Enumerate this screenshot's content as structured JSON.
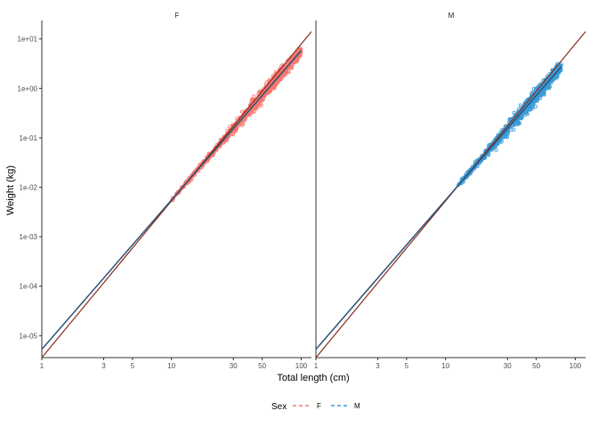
{
  "chart_data": {
    "type": "scatter",
    "x_scale": "log10",
    "y_scale": "log10",
    "xlabel": "Total length (cm)",
    "ylabel": "Weight (kg)",
    "x_ticks": [
      1,
      3,
      5,
      10,
      30,
      50,
      100
    ],
    "x_tick_labels": [
      "1",
      "3",
      "5",
      "10",
      "30",
      "50",
      "100"
    ],
    "y_ticks": [
      1e-05,
      0.0001,
      0.001,
      0.01,
      0.1,
      1,
      10
    ],
    "y_tick_labels": [
      "1e-05",
      "1e-04",
      "1e-03",
      "1e-02",
      "1e-01",
      "1e+00",
      "1e+01"
    ],
    "xlim": [
      1,
      120
    ],
    "ylim": [
      3.6e-06,
      20
    ],
    "grid": false,
    "legend": {
      "title": "Sex",
      "position": "bottom",
      "entries": [
        {
          "label": "F",
          "color": "#F8766D"
        },
        {
          "label": "M",
          "color": "#3A9BD6"
        }
      ]
    },
    "reference_line": {
      "intercept": 3.6e-06,
      "slope": 3.17,
      "color": "#8B2A1C"
    },
    "panels": [
      {
        "strip": "F",
        "point_color": "#F8766D",
        "points_x_range": [
          10,
          100
        ],
        "point_count": 900,
        "fit": {
          "intercept": 5.3e-06,
          "slope": 3.02,
          "color": "#2B5278",
          "x_range": [
            1,
            100
          ]
        }
      },
      {
        "strip": "M",
        "point_color": "#3A9BD6",
        "points_x_range": [
          12,
          78
        ],
        "point_count": 900,
        "fit": {
          "intercept": 5.3e-06,
          "slope": 3.02,
          "color": "#2B5278",
          "x_range": [
            1,
            78
          ]
        }
      }
    ]
  }
}
